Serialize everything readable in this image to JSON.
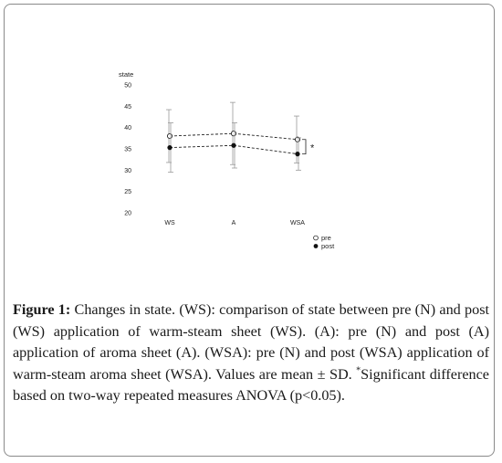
{
  "chart_data": {
    "type": "line",
    "ylabel": "state",
    "categories": [
      "WS",
      "A",
      "WSA"
    ],
    "ylim": [
      20,
      50
    ],
    "yticks": [
      20,
      25,
      30,
      35,
      40,
      45,
      50
    ],
    "series": [
      {
        "name": "pre",
        "marker": "open-circle",
        "values": [
          38.0,
          38.6,
          37.2
        ],
        "sd": [
          6.2,
          7.3,
          5.5
        ]
      },
      {
        "name": "post",
        "marker": "filled-circle",
        "values": [
          35.3,
          35.8,
          33.8
        ],
        "sd": [
          5.8,
          5.3,
          3.8
        ]
      }
    ],
    "annotation": "*",
    "legend_position": "bottom-right",
    "grid": false
  },
  "caption": {
    "figure_label": "Figure 1:",
    "text_before_marker": " Changes in state. (WS): comparison of state between pre (N) and post (WS) application of warm-steam sheet (WS). (A): pre (N) and post (A) application of aroma sheet (A). (WSA): pre (N) and post (WSA) application of warm-steam aroma sheet (WSA). Values are mean ± SD. ",
    "marker": "*",
    "text_after_marker": "Significant difference based on two-way repeated measures ANOVA (p<0.05)."
  }
}
